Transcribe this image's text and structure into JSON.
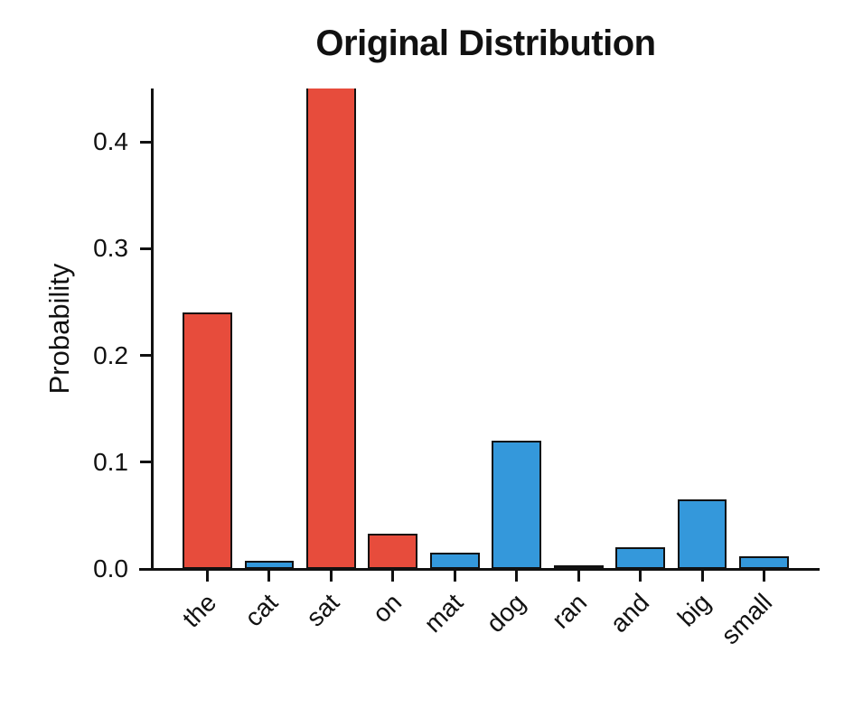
{
  "chart_data": {
    "type": "bar",
    "title": "Original Distribution",
    "xlabel": "",
    "ylabel": "Probability",
    "categories": [
      "the",
      "cat",
      "sat",
      "on",
      "mat",
      "dog",
      "ran",
      "and",
      "big",
      "small"
    ],
    "values": [
      0.24,
      0.008,
      0.45,
      0.033,
      0.015,
      0.12,
      0.003,
      0.02,
      0.065,
      0.012
    ],
    "bar_colors": [
      "#e74c3c",
      "#3498db",
      "#e74c3c",
      "#e74c3c",
      "#3498db",
      "#3498db",
      "#3498db",
      "#3498db",
      "#3498db",
      "#3498db"
    ],
    "edge_color": "#111111",
    "ylim": [
      0,
      0.45
    ],
    "yticks": [
      0.0,
      0.1,
      0.2,
      0.3,
      0.4
    ],
    "ytick_labels": [
      "0.0",
      "0.1",
      "0.2",
      "0.3",
      "0.4"
    ],
    "grid": false,
    "legend": null,
    "background_color": "#ffffff",
    "colors_legend": {
      "red": "#e74c3c",
      "blue": "#3498db"
    }
  }
}
